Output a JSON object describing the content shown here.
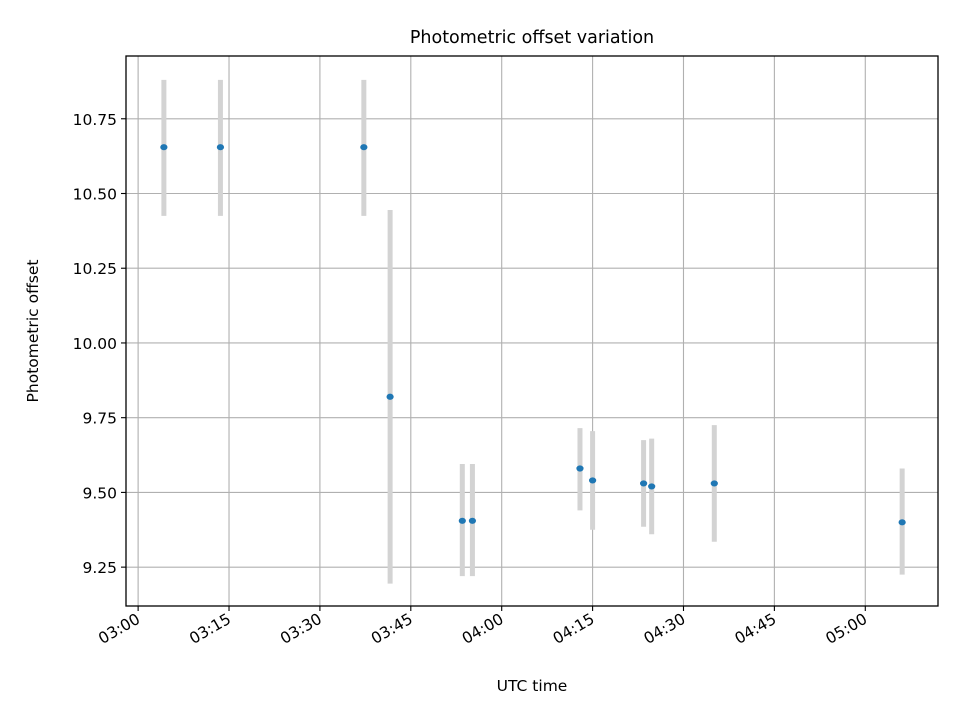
{
  "chart_data": {
    "type": "scatter",
    "title": "Photometric offset variation",
    "xlabel": "UTC time",
    "ylabel": "Photometric offset",
    "x_unit": "time (HH:MM UTC)",
    "xlim": [
      "02:58",
      "05:12"
    ],
    "ylim": [
      9.12,
      10.96
    ],
    "xticks": [
      "03:00",
      "03:15",
      "03:30",
      "03:45",
      "04:00",
      "04:15",
      "04:30",
      "04:45",
      "05:00"
    ],
    "yticks": [
      "9.25",
      "9.50",
      "9.75",
      "10.00",
      "10.25",
      "10.50",
      "10.75"
    ],
    "grid": true,
    "marker_color": "#1f77b4",
    "errorbar_color": "#d3d3d3",
    "points": [
      {
        "x": "03:04:15",
        "y": 10.655,
        "ylow": 10.425,
        "yhigh": 10.88
      },
      {
        "x": "03:13:35",
        "y": 10.655,
        "ylow": 10.425,
        "yhigh": 10.88
      },
      {
        "x": "03:37:15",
        "y": 10.655,
        "ylow": 10.425,
        "yhigh": 10.88
      },
      {
        "x": "03:41:35",
        "y": 9.82,
        "ylow": 9.195,
        "yhigh": 10.445
      },
      {
        "x": "03:53:30",
        "y": 9.405,
        "ylow": 9.22,
        "yhigh": 9.595
      },
      {
        "x": "03:55:10",
        "y": 9.405,
        "ylow": 9.22,
        "yhigh": 9.595
      },
      {
        "x": "04:12:55",
        "y": 9.58,
        "ylow": 9.44,
        "yhigh": 9.715
      },
      {
        "x": "04:15:00",
        "y": 9.54,
        "ylow": 9.375,
        "yhigh": 9.705
      },
      {
        "x": "04:23:25",
        "y": 9.53,
        "ylow": 9.385,
        "yhigh": 9.675
      },
      {
        "x": "04:24:45",
        "y": 9.52,
        "ylow": 9.36,
        "yhigh": 9.68
      },
      {
        "x": "04:35:05",
        "y": 9.53,
        "ylow": 9.335,
        "yhigh": 9.725
      },
      {
        "x": "05:06:05",
        "y": 9.4,
        "ylow": 9.225,
        "yhigh": 9.58
      }
    ]
  }
}
